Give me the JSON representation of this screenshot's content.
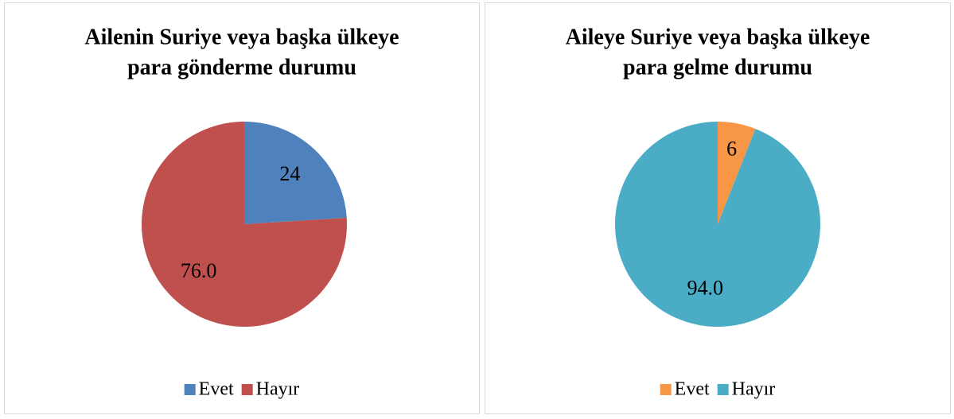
{
  "chart_data": [
    {
      "type": "pie",
      "title": [
        "Ailenin Suriye veya başka ülkeye",
        "para gönderme durumu"
      ],
      "categories": [
        "Evet",
        "Hayır"
      ],
      "values": [
        24,
        76
      ],
      "value_labels": [
        "24",
        "76.0"
      ],
      "colors": [
        "#4f81bd",
        "#c0504d"
      ],
      "legend": "bottom"
    },
    {
      "type": "pie",
      "title": [
        "Aileye Suriye veya başka ülkeye",
        "para gelme durumu"
      ],
      "categories": [
        "Evet",
        "Hayır"
      ],
      "values": [
        6,
        94
      ],
      "value_labels": [
        "6",
        "94.0"
      ],
      "colors": [
        "#f79646",
        "#4bacc6"
      ],
      "legend": "bottom"
    }
  ]
}
